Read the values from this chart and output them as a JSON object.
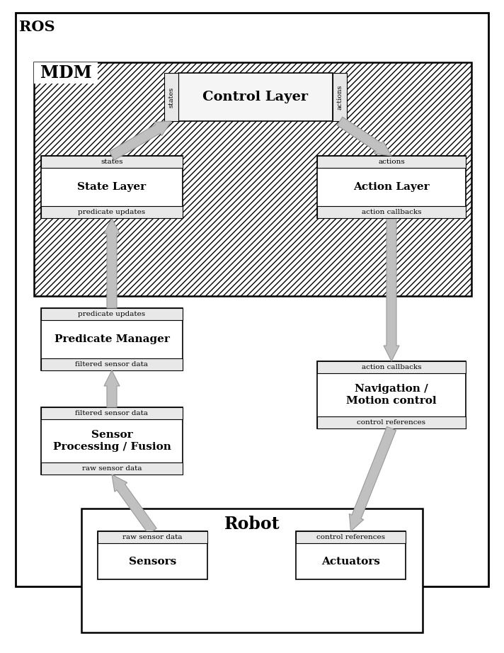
{
  "fig_width": 7.12,
  "fig_height": 9.22,
  "bg_color": "#ffffff",
  "strip_color": "#e8e8e8",
  "box_fill": "#ffffff",
  "hatch_pattern": "////",
  "hatch_fill": "#ffffff",
  "arrow_color": "#c0c0c0",
  "arrow_edge": "#999999",
  "ros_label": "ROS",
  "mdm_label": "MDM",
  "robot_label": "Robot",
  "control_layer_label": "Control Layer",
  "state_layer_label": "State Layer",
  "action_layer_label": "Action Layer",
  "predicate_manager_label": "Predicate Manager",
  "sensor_processing_label": "Sensor\nProcessing / Fusion",
  "navigation_label": "Navigation /\nMotion control",
  "sensors_label": "Sensors",
  "actuators_label": "Actuators",
  "cl_left_tab": "states",
  "cl_right_tab": "actions",
  "sl_top": "states",
  "sl_bottom": "predicate updates",
  "al_top": "actions",
  "al_bottom": "action callbacks",
  "pm_top": "predicate updates",
  "pm_bottom": "filtered sensor data",
  "spf_top": "filtered sensor data",
  "spf_bottom": "raw sensor data",
  "nav_top": "action callbacks",
  "nav_bottom": "control references",
  "sens_top": "raw sensor data",
  "act_top": "control references"
}
